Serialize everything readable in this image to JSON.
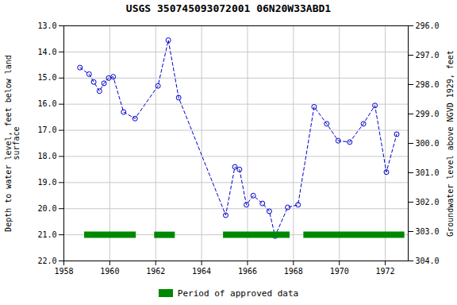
{
  "chart_data": {
    "type": "line",
    "title": "USGS 350745093072001 06N20W33ABD1",
    "x_label": null,
    "y_label": "Depth to water level, feet below land\nsurface",
    "y2_label": "Groundwater level above NGVD 1929, feet",
    "xlim": [
      1958,
      1973
    ],
    "xticks": [
      1958,
      1960,
      1962,
      1964,
      1966,
      1968,
      1970,
      1972
    ],
    "ylim": [
      22.0,
      13.0
    ],
    "yticks": [
      {
        "value": 13.0,
        "label": "13.0"
      },
      {
        "value": 14.0,
        "label": "14.0"
      },
      {
        "value": 15.0,
        "label": "15.0"
      },
      {
        "value": 16.0,
        "label": "16.0"
      },
      {
        "value": 17.0,
        "label": "17.0"
      },
      {
        "value": 18.0,
        "label": "18.0"
      },
      {
        "value": 19.0,
        "label": "19.0"
      },
      {
        "value": 20.0,
        "label": "20.0"
      },
      {
        "value": 21.0,
        "label": "21.0"
      },
      {
        "value": 22.0,
        "label": "22.0"
      }
    ],
    "y2lim": [
      304.0,
      296.0
    ],
    "y2ticks": [
      {
        "value": 296.0,
        "label": "296.0"
      },
      {
        "value": 297.0,
        "label": "297.0"
      },
      {
        "value": 298.0,
        "label": "298.0"
      },
      {
        "value": 299.0,
        "label": "299.0"
      },
      {
        "value": 300.0,
        "label": "300.0"
      },
      {
        "value": 301.0,
        "label": "301.0"
      },
      {
        "value": 302.0,
        "label": "302.0"
      },
      {
        "value": 303.0,
        "label": "303.0"
      },
      {
        "value": 304.0,
        "label": "304.0"
      }
    ],
    "grid": true,
    "legend": "bottom",
    "x": [
      1958.7,
      1959.1,
      1959.3,
      1959.55,
      1959.75,
      1959.95,
      1960.15,
      1960.6,
      1961.1,
      1962.1,
      1962.55,
      1963.0,
      1965.05,
      1965.45,
      1965.65,
      1965.95,
      1966.25,
      1966.65,
      1966.95,
      1967.2,
      1967.75,
      1968.2,
      1968.9,
      1969.45,
      1969.95,
      1970.45,
      1971.05,
      1971.55,
      1972.05,
      1972.5
    ],
    "series": [
      {
        "type": "line",
        "color": "#0000cc",
        "line_style": "dashed",
        "marker": "circle",
        "values": [
          14.6,
          14.85,
          15.15,
          15.5,
          15.2,
          15.0,
          14.95,
          16.3,
          16.55,
          15.3,
          13.55,
          15.75,
          20.25,
          18.4,
          18.5,
          19.85,
          19.5,
          19.8,
          20.1,
          21.05,
          19.95,
          19.85,
          16.1,
          16.75,
          17.4,
          17.45,
          16.75,
          16.05,
          18.6,
          17.15
        ]
      },
      {
        "type": "bar",
        "name": "Period of approved data",
        "color": "#008800",
        "y": 21.0,
        "ranges": [
          [
            1958.9,
            1961.15
          ],
          [
            1961.95,
            1962.85
          ],
          [
            1964.95,
            1967.85
          ],
          [
            1968.45,
            1972.85
          ]
        ]
      }
    ]
  }
}
